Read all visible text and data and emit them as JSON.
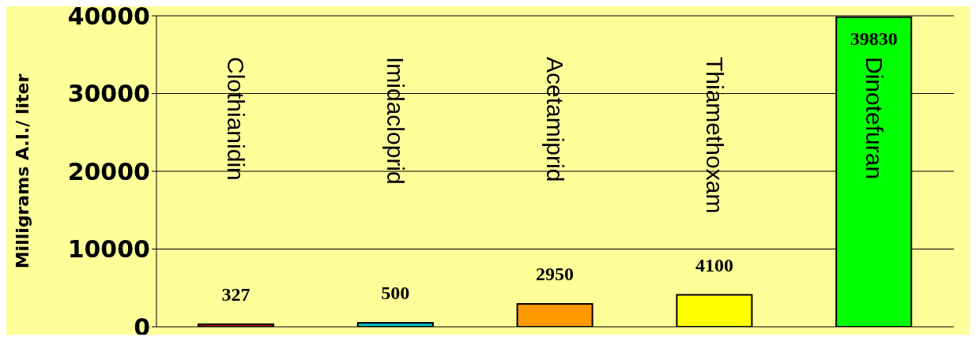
{
  "chart_data": {
    "type": "bar",
    "ylabel": "Milligrams A.I./ liter",
    "categories": [
      "Clothianidin",
      "Imidacloprid",
      "Acetamiprid",
      "Thiamethoxam",
      "Dinotefuran"
    ],
    "values": [
      327,
      500,
      2950,
      4100,
      39830
    ],
    "colors": [
      "#c00000",
      "#00c0c0",
      "#ff9900",
      "#ffff00",
      "#00ff00"
    ],
    "ylim": [
      0,
      40000
    ],
    "yticks": [
      0,
      10000,
      20000,
      30000,
      40000
    ],
    "grid": "y",
    "data_labels": true
  }
}
